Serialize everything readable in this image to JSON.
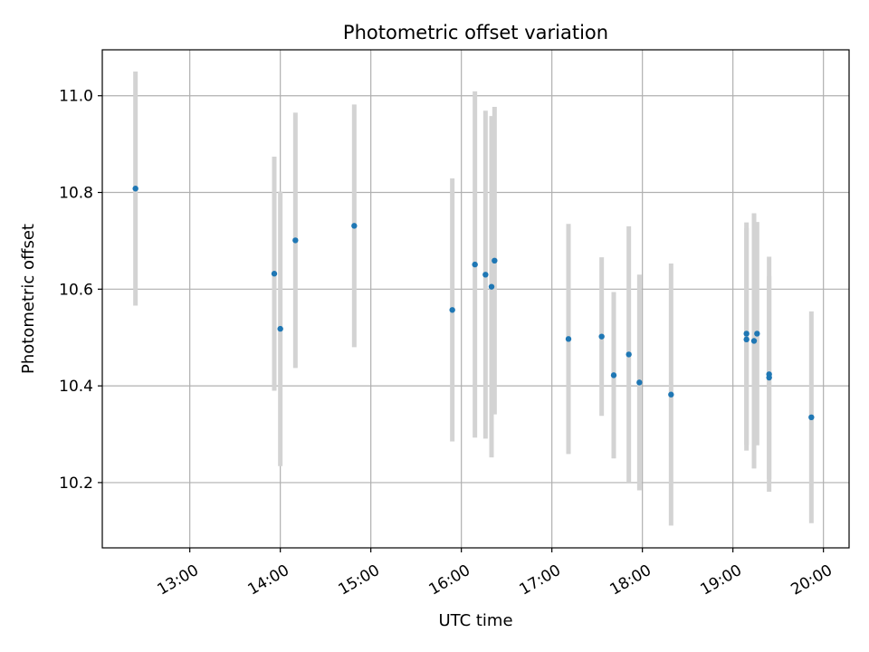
{
  "chart_data": {
    "type": "scatter",
    "title": "Photometric offset variation",
    "xlabel": "UTC time",
    "ylabel": "Photometric offset",
    "x_ticks": [
      "13:00",
      "14:00",
      "15:00",
      "16:00",
      "17:00",
      "18:00",
      "19:00",
      "20:00"
    ],
    "y_ticks": [
      "10.2",
      "10.4",
      "10.6",
      "10.8",
      "11.0"
    ],
    "xlim": [
      "12:02",
      "20:17"
    ],
    "ylim": [
      10.065,
      11.095
    ],
    "grid": true,
    "colors": {
      "point": "#1f77b4",
      "errorbar": "#d3d3d3",
      "grid": "#b0b0b0",
      "axes": "#000000"
    },
    "points": [
      {
        "x": "12:24",
        "y": 10.808,
        "yerr": 0.242
      },
      {
        "x": "13:56",
        "y": 10.632,
        "yerr": 0.242
      },
      {
        "x": "14:00",
        "y": 10.518,
        "yerr": 0.284
      },
      {
        "x": "14:10",
        "y": 10.701,
        "yerr": 0.264
      },
      {
        "x": "14:49",
        "y": 10.731,
        "yerr": 0.251
      },
      {
        "x": "15:54",
        "y": 10.557,
        "yerr": 0.272
      },
      {
        "x": "16:09",
        "y": 10.651,
        "yerr": 0.358
      },
      {
        "x": "16:16",
        "y": 10.63,
        "yerr": 0.339
      },
      {
        "x": "16:20",
        "y": 10.605,
        "yerr": 0.353
      },
      {
        "x": "16:22",
        "y": 10.659,
        "yerr": 0.318
      },
      {
        "x": "17:11",
        "y": 10.497,
        "yerr": 0.238
      },
      {
        "x": "17:33",
        "y": 10.502,
        "yerr": 0.164
      },
      {
        "x": "17:41",
        "y": 10.422,
        "yerr": 0.172
      },
      {
        "x": "17:51",
        "y": 10.465,
        "yerr": 0.265
      },
      {
        "x": "17:58",
        "y": 10.407,
        "yerr": 0.223
      },
      {
        "x": "18:19",
        "y": 10.382,
        "yerr": 0.271
      },
      {
        "x": "19:09",
        "y": 10.508,
        "yerr": 0.23
      },
      {
        "x": "19:09",
        "y": 10.496,
        "yerr": 0.23
      },
      {
        "x": "19:14",
        "y": 10.493,
        "yerr": 0.264
      },
      {
        "x": "19:16",
        "y": 10.508,
        "yerr": 0.231
      },
      {
        "x": "19:24",
        "y": 10.417,
        "yerr": 0.21
      },
      {
        "x": "19:24",
        "y": 10.424,
        "yerr": 0.243
      },
      {
        "x": "19:52",
        "y": 10.335,
        "yerr": 0.219
      }
    ]
  }
}
